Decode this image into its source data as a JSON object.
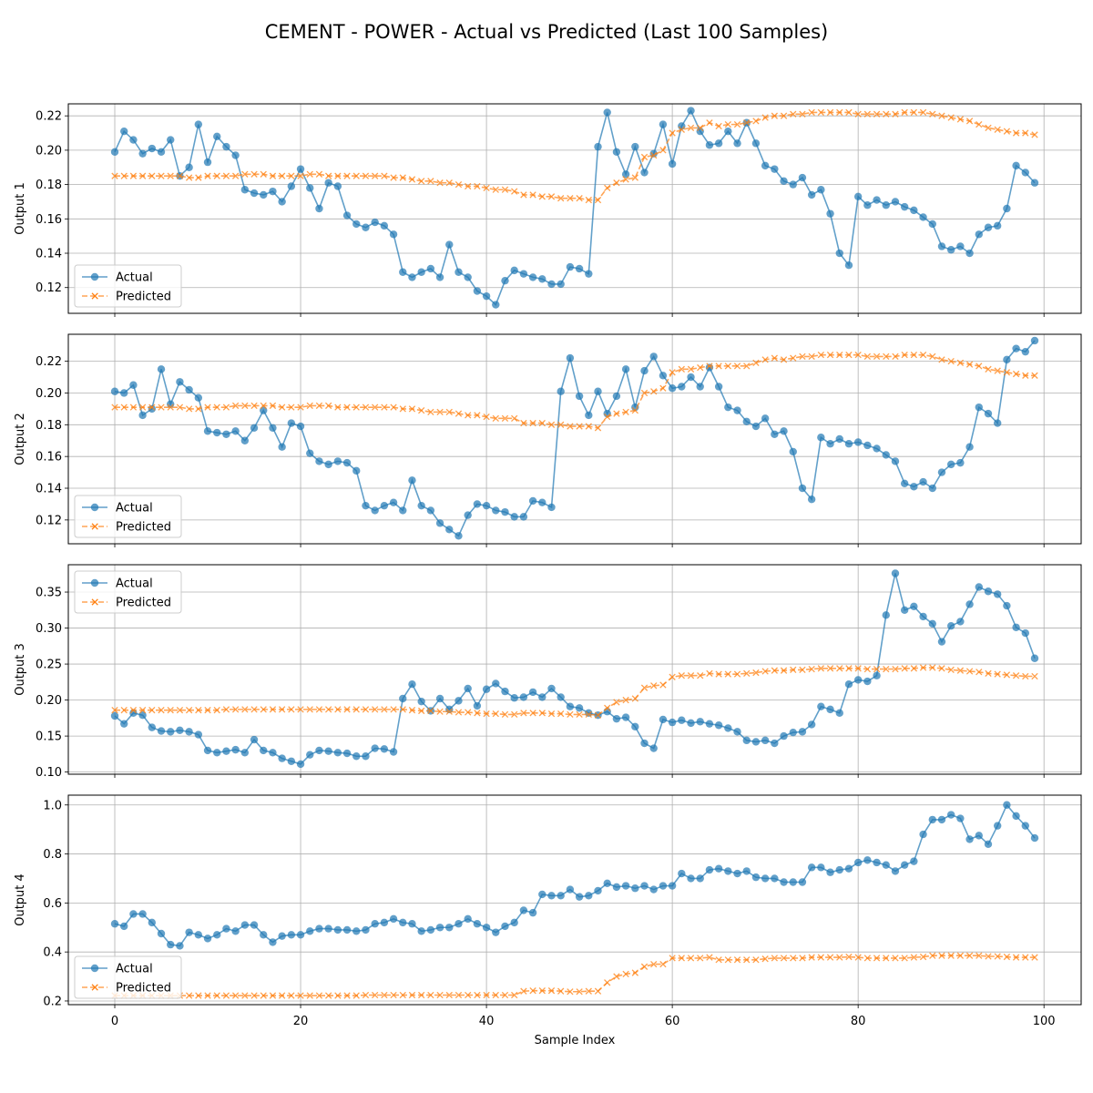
{
  "chart_data": {
    "type": "line",
    "title": "CEMENT - POWER - Actual vs Predicted (Last 100 Samples)",
    "xlabel": "Sample Index",
    "xlim": [
      -5,
      104
    ],
    "xticks": [
      0,
      20,
      40,
      60,
      80,
      100
    ],
    "grid": true,
    "legend_position": "upper-left",
    "colors": {
      "actual": "#1f77b4",
      "predicted": "#ff7f0e"
    },
    "series_names": [
      "Actual",
      "Predicted"
    ],
    "subplots": [
      {
        "ylabel": "Output 1",
        "ylim": [
          0.105,
          0.227
        ],
        "yticks": [
          0.12,
          0.14,
          0.16,
          0.18,
          0.2,
          0.22
        ],
        "tick_format": 2,
        "actual": [
          0.199,
          0.211,
          0.206,
          0.198,
          0.201,
          0.199,
          0.206,
          0.185,
          0.19,
          0.215,
          0.193,
          0.208,
          0.202,
          0.197,
          0.177,
          0.175,
          0.174,
          0.176,
          0.17,
          0.179,
          0.189,
          0.178,
          0.166,
          0.181,
          0.179,
          0.162,
          0.157,
          0.155,
          0.158,
          0.156,
          0.151,
          0.129,
          0.126,
          0.129,
          0.131,
          0.126,
          0.145,
          0.129,
          0.126,
          0.118,
          0.115,
          0.11,
          0.124,
          0.13,
          0.128,
          0.126,
          0.125,
          0.122,
          0.122,
          0.132,
          0.131,
          0.128,
          0.202,
          0.222,
          0.199,
          0.186,
          0.202,
          0.187,
          0.198,
          0.215,
          0.192,
          0.214,
          0.223,
          0.211,
          0.203,
          0.204,
          0.211,
          0.204,
          0.216,
          0.204,
          0.191,
          0.189,
          0.182,
          0.18,
          0.184,
          0.174,
          0.177,
          0.163,
          0.14,
          0.133,
          0.173,
          0.168,
          0.171,
          0.168,
          0.17,
          0.167,
          0.165,
          0.161,
          0.157,
          0.144,
          0.142,
          0.144,
          0.14,
          0.151,
          0.155,
          0.156,
          0.166,
          0.191,
          0.187,
          0.181
        ],
        "predicted": [
          0.185,
          0.185,
          0.185,
          0.185,
          0.185,
          0.185,
          0.185,
          0.185,
          0.184,
          0.184,
          0.185,
          0.185,
          0.185,
          0.185,
          0.186,
          0.186,
          0.186,
          0.185,
          0.185,
          0.185,
          0.185,
          0.186,
          0.186,
          0.185,
          0.185,
          0.185,
          0.185,
          0.185,
          0.185,
          0.185,
          0.184,
          0.184,
          0.183,
          0.182,
          0.182,
          0.181,
          0.181,
          0.18,
          0.179,
          0.179,
          0.178,
          0.177,
          0.177,
          0.176,
          0.174,
          0.174,
          0.173,
          0.173,
          0.172,
          0.172,
          0.172,
          0.171,
          0.171,
          0.178,
          0.181,
          0.183,
          0.184,
          0.196,
          0.197,
          0.2,
          0.21,
          0.212,
          0.213,
          0.213,
          0.216,
          0.214,
          0.215,
          0.215,
          0.216,
          0.217,
          0.219,
          0.22,
          0.22,
          0.221,
          0.221,
          0.222,
          0.222,
          0.222,
          0.222,
          0.222,
          0.221,
          0.221,
          0.221,
          0.221,
          0.221,
          0.222,
          0.222,
          0.222,
          0.221,
          0.22,
          0.219,
          0.218,
          0.217,
          0.215,
          0.213,
          0.212,
          0.211,
          0.21,
          0.21,
          0.209
        ]
      },
      {
        "ylabel": "Output 2",
        "ylim": [
          0.105,
          0.237
        ],
        "yticks": [
          0.12,
          0.14,
          0.16,
          0.18,
          0.2,
          0.22
        ],
        "tick_format": 2,
        "actual": [
          0.201,
          0.2,
          0.205,
          0.186,
          0.19,
          0.215,
          0.193,
          0.207,
          0.202,
          0.197,
          0.176,
          0.175,
          0.174,
          0.176,
          0.17,
          0.178,
          0.189,
          0.178,
          0.166,
          0.181,
          0.179,
          0.162,
          0.157,
          0.155,
          0.157,
          0.156,
          0.151,
          0.129,
          0.126,
          0.129,
          0.131,
          0.126,
          0.145,
          0.129,
          0.126,
          0.118,
          0.114,
          0.11,
          0.123,
          0.13,
          0.129,
          0.126,
          0.125,
          0.122,
          0.122,
          0.132,
          0.131,
          0.128,
          0.201,
          0.222,
          0.198,
          0.186,
          0.201,
          0.187,
          0.198,
          0.215,
          0.191,
          0.214,
          0.223,
          0.211,
          0.203,
          0.204,
          0.21,
          0.204,
          0.216,
          0.204,
          0.191,
          0.189,
          0.182,
          0.179,
          0.184,
          0.174,
          0.176,
          0.163,
          0.14,
          0.133,
          0.172,
          0.168,
          0.171,
          0.168,
          0.169,
          0.167,
          0.165,
          0.161,
          0.157,
          0.143,
          0.141,
          0.144,
          0.14,
          0.15,
          0.155,
          0.156,
          0.166,
          0.191,
          0.187,
          0.181,
          0.221,
          0.228,
          0.226,
          0.233
        ],
        "predicted": [
          0.191,
          0.191,
          0.191,
          0.191,
          0.191,
          0.191,
          0.191,
          0.191,
          0.19,
          0.19,
          0.191,
          0.191,
          0.191,
          0.192,
          0.192,
          0.192,
          0.192,
          0.192,
          0.191,
          0.191,
          0.191,
          0.192,
          0.192,
          0.192,
          0.191,
          0.191,
          0.191,
          0.191,
          0.191,
          0.191,
          0.191,
          0.19,
          0.19,
          0.189,
          0.188,
          0.188,
          0.188,
          0.187,
          0.186,
          0.186,
          0.185,
          0.184,
          0.184,
          0.184,
          0.181,
          0.181,
          0.181,
          0.18,
          0.18,
          0.179,
          0.179,
          0.179,
          0.178,
          0.185,
          0.187,
          0.188,
          0.189,
          0.2,
          0.201,
          0.203,
          0.213,
          0.215,
          0.215,
          0.216,
          0.217,
          0.217,
          0.217,
          0.217,
          0.217,
          0.219,
          0.221,
          0.222,
          0.221,
          0.222,
          0.223,
          0.223,
          0.224,
          0.224,
          0.224,
          0.224,
          0.224,
          0.223,
          0.223,
          0.223,
          0.223,
          0.224,
          0.224,
          0.224,
          0.223,
          0.221,
          0.22,
          0.219,
          0.218,
          0.217,
          0.215,
          0.214,
          0.213,
          0.212,
          0.211,
          0.211
        ]
      },
      {
        "ylabel": "Output 3",
        "ylim": [
          0.097,
          0.388
        ],
        "yticks": [
          0.1,
          0.15,
          0.2,
          0.25,
          0.3,
          0.35
        ],
        "tick_format": 2,
        "actual": [
          0.178,
          0.167,
          0.182,
          0.179,
          0.162,
          0.157,
          0.156,
          0.158,
          0.156,
          0.152,
          0.13,
          0.127,
          0.129,
          0.131,
          0.127,
          0.145,
          0.13,
          0.127,
          0.119,
          0.115,
          0.111,
          0.124,
          0.13,
          0.129,
          0.127,
          0.126,
          0.122,
          0.122,
          0.133,
          0.132,
          0.128,
          0.202,
          0.222,
          0.198,
          0.185,
          0.202,
          0.187,
          0.199,
          0.216,
          0.192,
          0.215,
          0.223,
          0.212,
          0.203,
          0.204,
          0.211,
          0.204,
          0.216,
          0.204,
          0.191,
          0.189,
          0.182,
          0.179,
          0.184,
          0.174,
          0.176,
          0.163,
          0.14,
          0.133,
          0.173,
          0.169,
          0.172,
          0.168,
          0.17,
          0.167,
          0.165,
          0.161,
          0.156,
          0.144,
          0.142,
          0.144,
          0.14,
          0.15,
          0.155,
          0.156,
          0.166,
          0.191,
          0.187,
          0.182,
          0.222,
          0.228,
          0.226,
          0.234,
          0.318,
          0.376,
          0.325,
          0.33,
          0.316,
          0.306,
          0.281,
          0.303,
          0.309,
          0.333,
          0.357,
          0.351,
          0.347,
          0.331,
          0.301,
          0.293,
          0.258
        ],
        "predicted": [
          0.186,
          0.186,
          0.186,
          0.186,
          0.186,
          0.186,
          0.186,
          0.186,
          0.186,
          0.186,
          0.186,
          0.186,
          0.187,
          0.187,
          0.187,
          0.187,
          0.187,
          0.187,
          0.187,
          0.187,
          0.187,
          0.187,
          0.187,
          0.187,
          0.187,
          0.187,
          0.187,
          0.187,
          0.187,
          0.187,
          0.187,
          0.187,
          0.186,
          0.185,
          0.185,
          0.184,
          0.184,
          0.183,
          0.183,
          0.182,
          0.181,
          0.181,
          0.18,
          0.18,
          0.182,
          0.182,
          0.182,
          0.181,
          0.181,
          0.18,
          0.18,
          0.18,
          0.179,
          0.189,
          0.197,
          0.2,
          0.202,
          0.217,
          0.22,
          0.221,
          0.232,
          0.234,
          0.234,
          0.234,
          0.237,
          0.236,
          0.236,
          0.236,
          0.237,
          0.238,
          0.24,
          0.241,
          0.241,
          0.242,
          0.242,
          0.243,
          0.244,
          0.244,
          0.244,
          0.244,
          0.244,
          0.243,
          0.243,
          0.243,
          0.243,
          0.244,
          0.244,
          0.245,
          0.245,
          0.244,
          0.242,
          0.241,
          0.24,
          0.239,
          0.237,
          0.236,
          0.235,
          0.234,
          0.233,
          0.233
        ]
      },
      {
        "ylabel": "Output 4",
        "ylim": [
          0.185,
          1.04
        ],
        "yticks": [
          0.2,
          0.4,
          0.6,
          0.8,
          1.0
        ],
        "tick_format": 1,
        "actual": [
          0.515,
          0.505,
          0.555,
          0.555,
          0.52,
          0.475,
          0.43,
          0.425,
          0.48,
          0.47,
          0.455,
          0.47,
          0.495,
          0.485,
          0.51,
          0.51,
          0.47,
          0.44,
          0.465,
          0.47,
          0.47,
          0.485,
          0.495,
          0.495,
          0.49,
          0.49,
          0.485,
          0.49,
          0.515,
          0.52,
          0.535,
          0.52,
          0.515,
          0.485,
          0.49,
          0.5,
          0.5,
          0.515,
          0.535,
          0.515,
          0.5,
          0.48,
          0.505,
          0.52,
          0.57,
          0.56,
          0.635,
          0.63,
          0.63,
          0.655,
          0.625,
          0.63,
          0.65,
          0.68,
          0.665,
          0.67,
          0.66,
          0.67,
          0.655,
          0.67,
          0.67,
          0.72,
          0.7,
          0.7,
          0.735,
          0.74,
          0.73,
          0.72,
          0.73,
          0.705,
          0.7,
          0.7,
          0.685,
          0.685,
          0.685,
          0.745,
          0.745,
          0.725,
          0.735,
          0.74,
          0.765,
          0.775,
          0.765,
          0.755,
          0.73,
          0.755,
          0.77,
          0.88,
          0.94,
          0.94,
          0.96,
          0.945,
          0.86,
          0.875,
          0.84,
          0.915,
          1.0,
          0.955,
          0.915,
          0.865
        ],
        "predicted": [
          0.222,
          0.222,
          0.222,
          0.222,
          0.222,
          0.222,
          0.222,
          0.222,
          0.222,
          0.222,
          0.222,
          0.222,
          0.222,
          0.222,
          0.222,
          0.222,
          0.222,
          0.222,
          0.222,
          0.222,
          0.222,
          0.222,
          0.222,
          0.222,
          0.222,
          0.222,
          0.222,
          0.224,
          0.224,
          0.224,
          0.224,
          0.224,
          0.224,
          0.224,
          0.224,
          0.224,
          0.224,
          0.224,
          0.224,
          0.224,
          0.224,
          0.224,
          0.224,
          0.224,
          0.24,
          0.242,
          0.242,
          0.242,
          0.24,
          0.238,
          0.238,
          0.24,
          0.24,
          0.275,
          0.3,
          0.31,
          0.315,
          0.34,
          0.35,
          0.35,
          0.375,
          0.375,
          0.375,
          0.375,
          0.378,
          0.368,
          0.368,
          0.368,
          0.368,
          0.368,
          0.372,
          0.375,
          0.375,
          0.375,
          0.375,
          0.378,
          0.378,
          0.378,
          0.378,
          0.38,
          0.378,
          0.375,
          0.375,
          0.375,
          0.375,
          0.375,
          0.378,
          0.38,
          0.385,
          0.385,
          0.385,
          0.385,
          0.385,
          0.385,
          0.382,
          0.382,
          0.38,
          0.378,
          0.378,
          0.378
        ]
      }
    ]
  }
}
